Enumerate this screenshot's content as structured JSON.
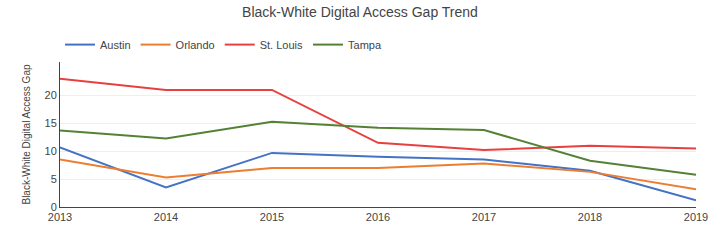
{
  "chart_data": {
    "type": "line",
    "title": "Black-White Digital Access Gap Trend",
    "y_label": "Black-White Digital Access Gap",
    "x": [
      2013,
      2014,
      2015,
      2016,
      2017,
      2018,
      2019
    ],
    "series": [
      {
        "name": "Austin",
        "color": "#4472C4",
        "values": [
          10.7,
          3.5,
          9.7,
          9.0,
          8.5,
          6.5,
          1.2
        ]
      },
      {
        "name": "Orlando",
        "color": "#ED7D31",
        "values": [
          8.5,
          5.3,
          7.0,
          7.0,
          7.8,
          6.3,
          3.2
        ]
      },
      {
        "name": "St. Louis",
        "color": "#E84040",
        "values": [
          23.0,
          21.0,
          21.0,
          11.5,
          10.2,
          11.0,
          10.5
        ]
      },
      {
        "name": "Tampa",
        "color": "#548235",
        "values": [
          13.7,
          12.3,
          15.3,
          14.2,
          13.8,
          8.3,
          5.8
        ]
      }
    ],
    "xlim": [
      2013,
      2019
    ],
    "xticks": [
      2013,
      2014,
      2015,
      2016,
      2017,
      2018,
      2019
    ],
    "ylim": [
      0,
      26
    ],
    "yticks": [
      0,
      5,
      10,
      15,
      20
    ],
    "grid": true,
    "legend": "top"
  }
}
